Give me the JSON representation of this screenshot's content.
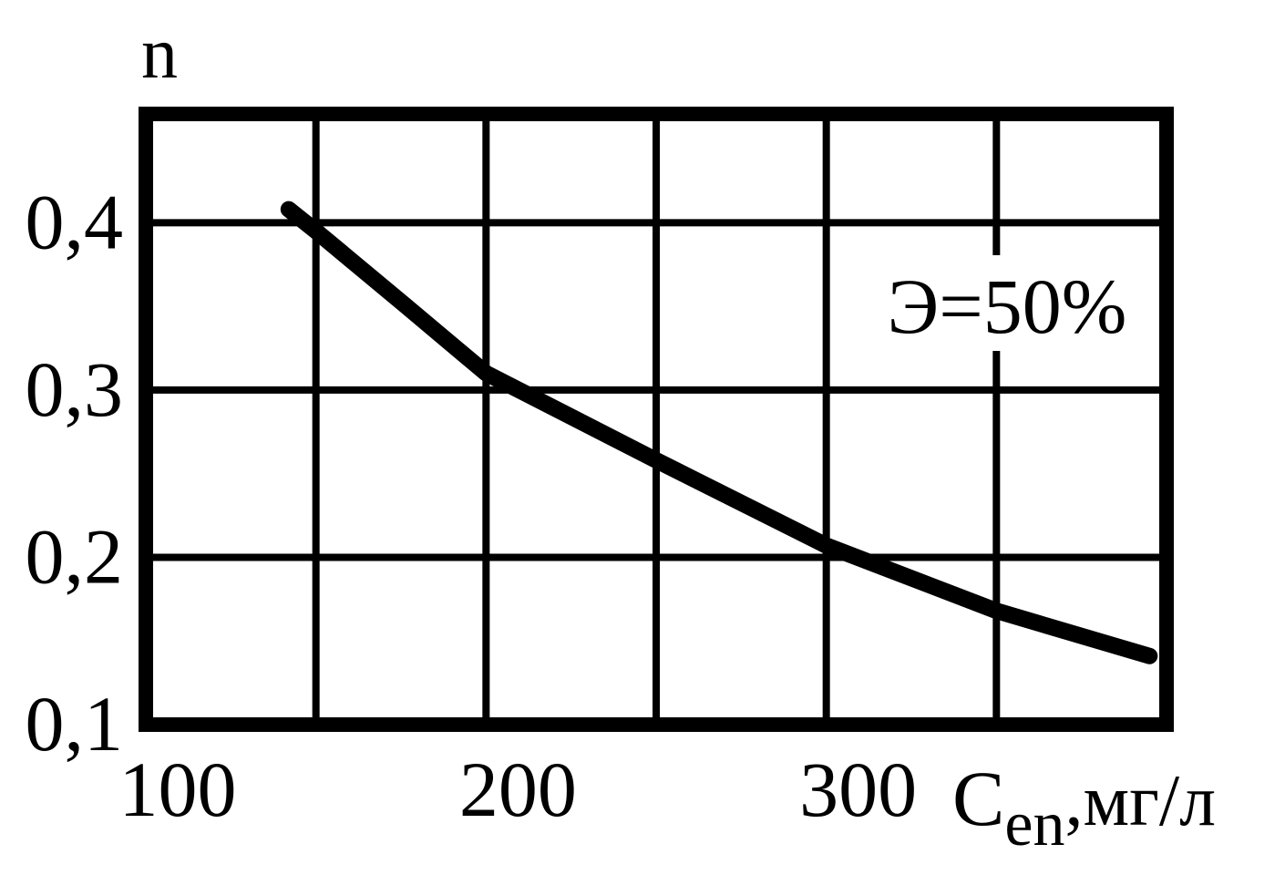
{
  "chart_data": {
    "type": "line",
    "ylabel": "n",
    "xlabel": {
      "main": "C",
      "sub": "en",
      "unit": ",мг/л"
    },
    "annotation": "Э=50%",
    "x": [
      142,
      150,
      176,
      200,
      250,
      300,
      350,
      395
    ],
    "series": [
      {
        "name": "Э=50%",
        "color": "#000000",
        "values": [
          0.408,
          0.395,
          0.351,
          0.31,
          0.258,
          0.207,
          0.168,
          0.141
        ]
      }
    ],
    "xlim": [
      100,
      400
    ],
    "xticks": [
      100,
      {
        "value": 150,
        "label": null
      },
      200,
      {
        "value": 250,
        "label": null
      },
      300,
      {
        "value": 350,
        "label": null
      }
    ],
    "ylim": [
      0.1,
      0.465
    ],
    "yticks": [
      {
        "value": 0.1,
        "label": "0,1"
      },
      {
        "value": 0.2,
        "label": "0,2"
      },
      {
        "value": 0.3,
        "label": "0,3"
      },
      {
        "value": 0.4,
        "label": "0,4"
      }
    ],
    "grid": true
  }
}
